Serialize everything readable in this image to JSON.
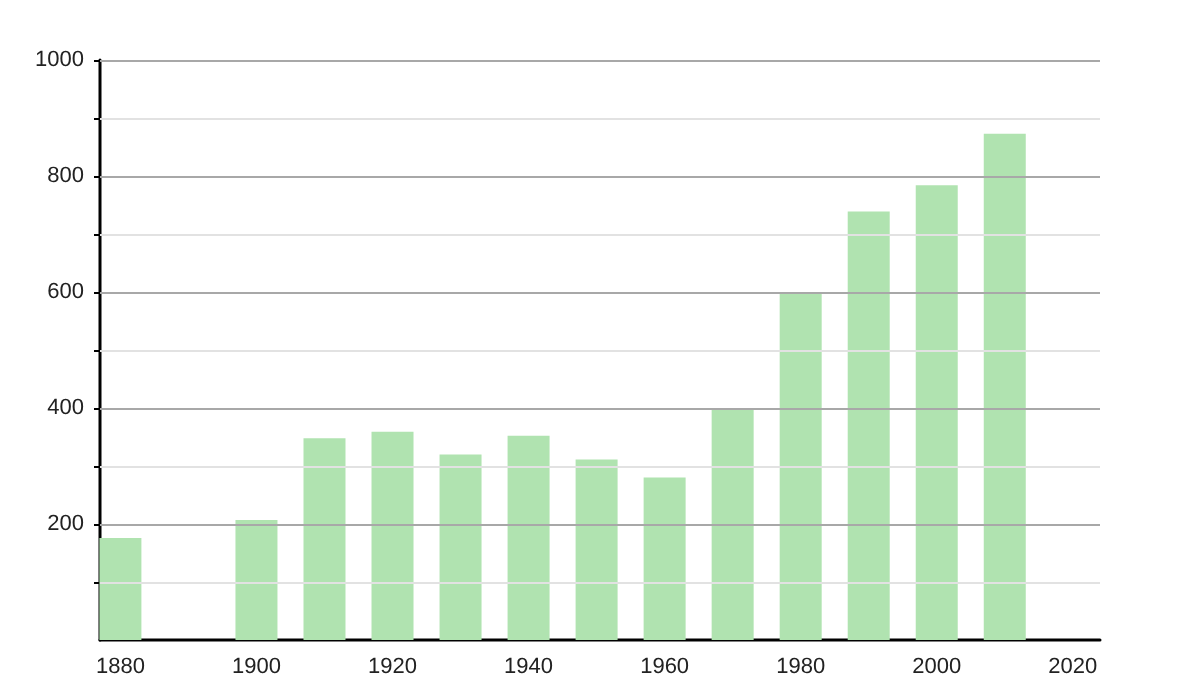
{
  "chart_data": {
    "type": "bar",
    "x": [
      1880,
      1900,
      1910,
      1920,
      1930,
      1940,
      1950,
      1960,
      1970,
      1980,
      1990,
      2000,
      2010
    ],
    "values": [
      176,
      207,
      348,
      359,
      320,
      352,
      311,
      280,
      400,
      600,
      739,
      784,
      873
    ],
    "color": "#b0e3b0",
    "xlim": [
      1877,
      2024
    ],
    "xticks": [
      1880,
      1900,
      1920,
      1940,
      1960,
      1980,
      2000,
      2020
    ],
    "ylim": [
      0,
      1000
    ],
    "yticks": [
      {
        "value": 100,
        "label": null
      },
      200,
      {
        "value": 300,
        "label": null
      },
      400,
      {
        "value": 500,
        "label": null
      },
      600,
      {
        "value": 700,
        "label": null
      },
      800,
      {
        "value": 900,
        "label": null
      },
      1000
    ],
    "grid": "y"
  }
}
